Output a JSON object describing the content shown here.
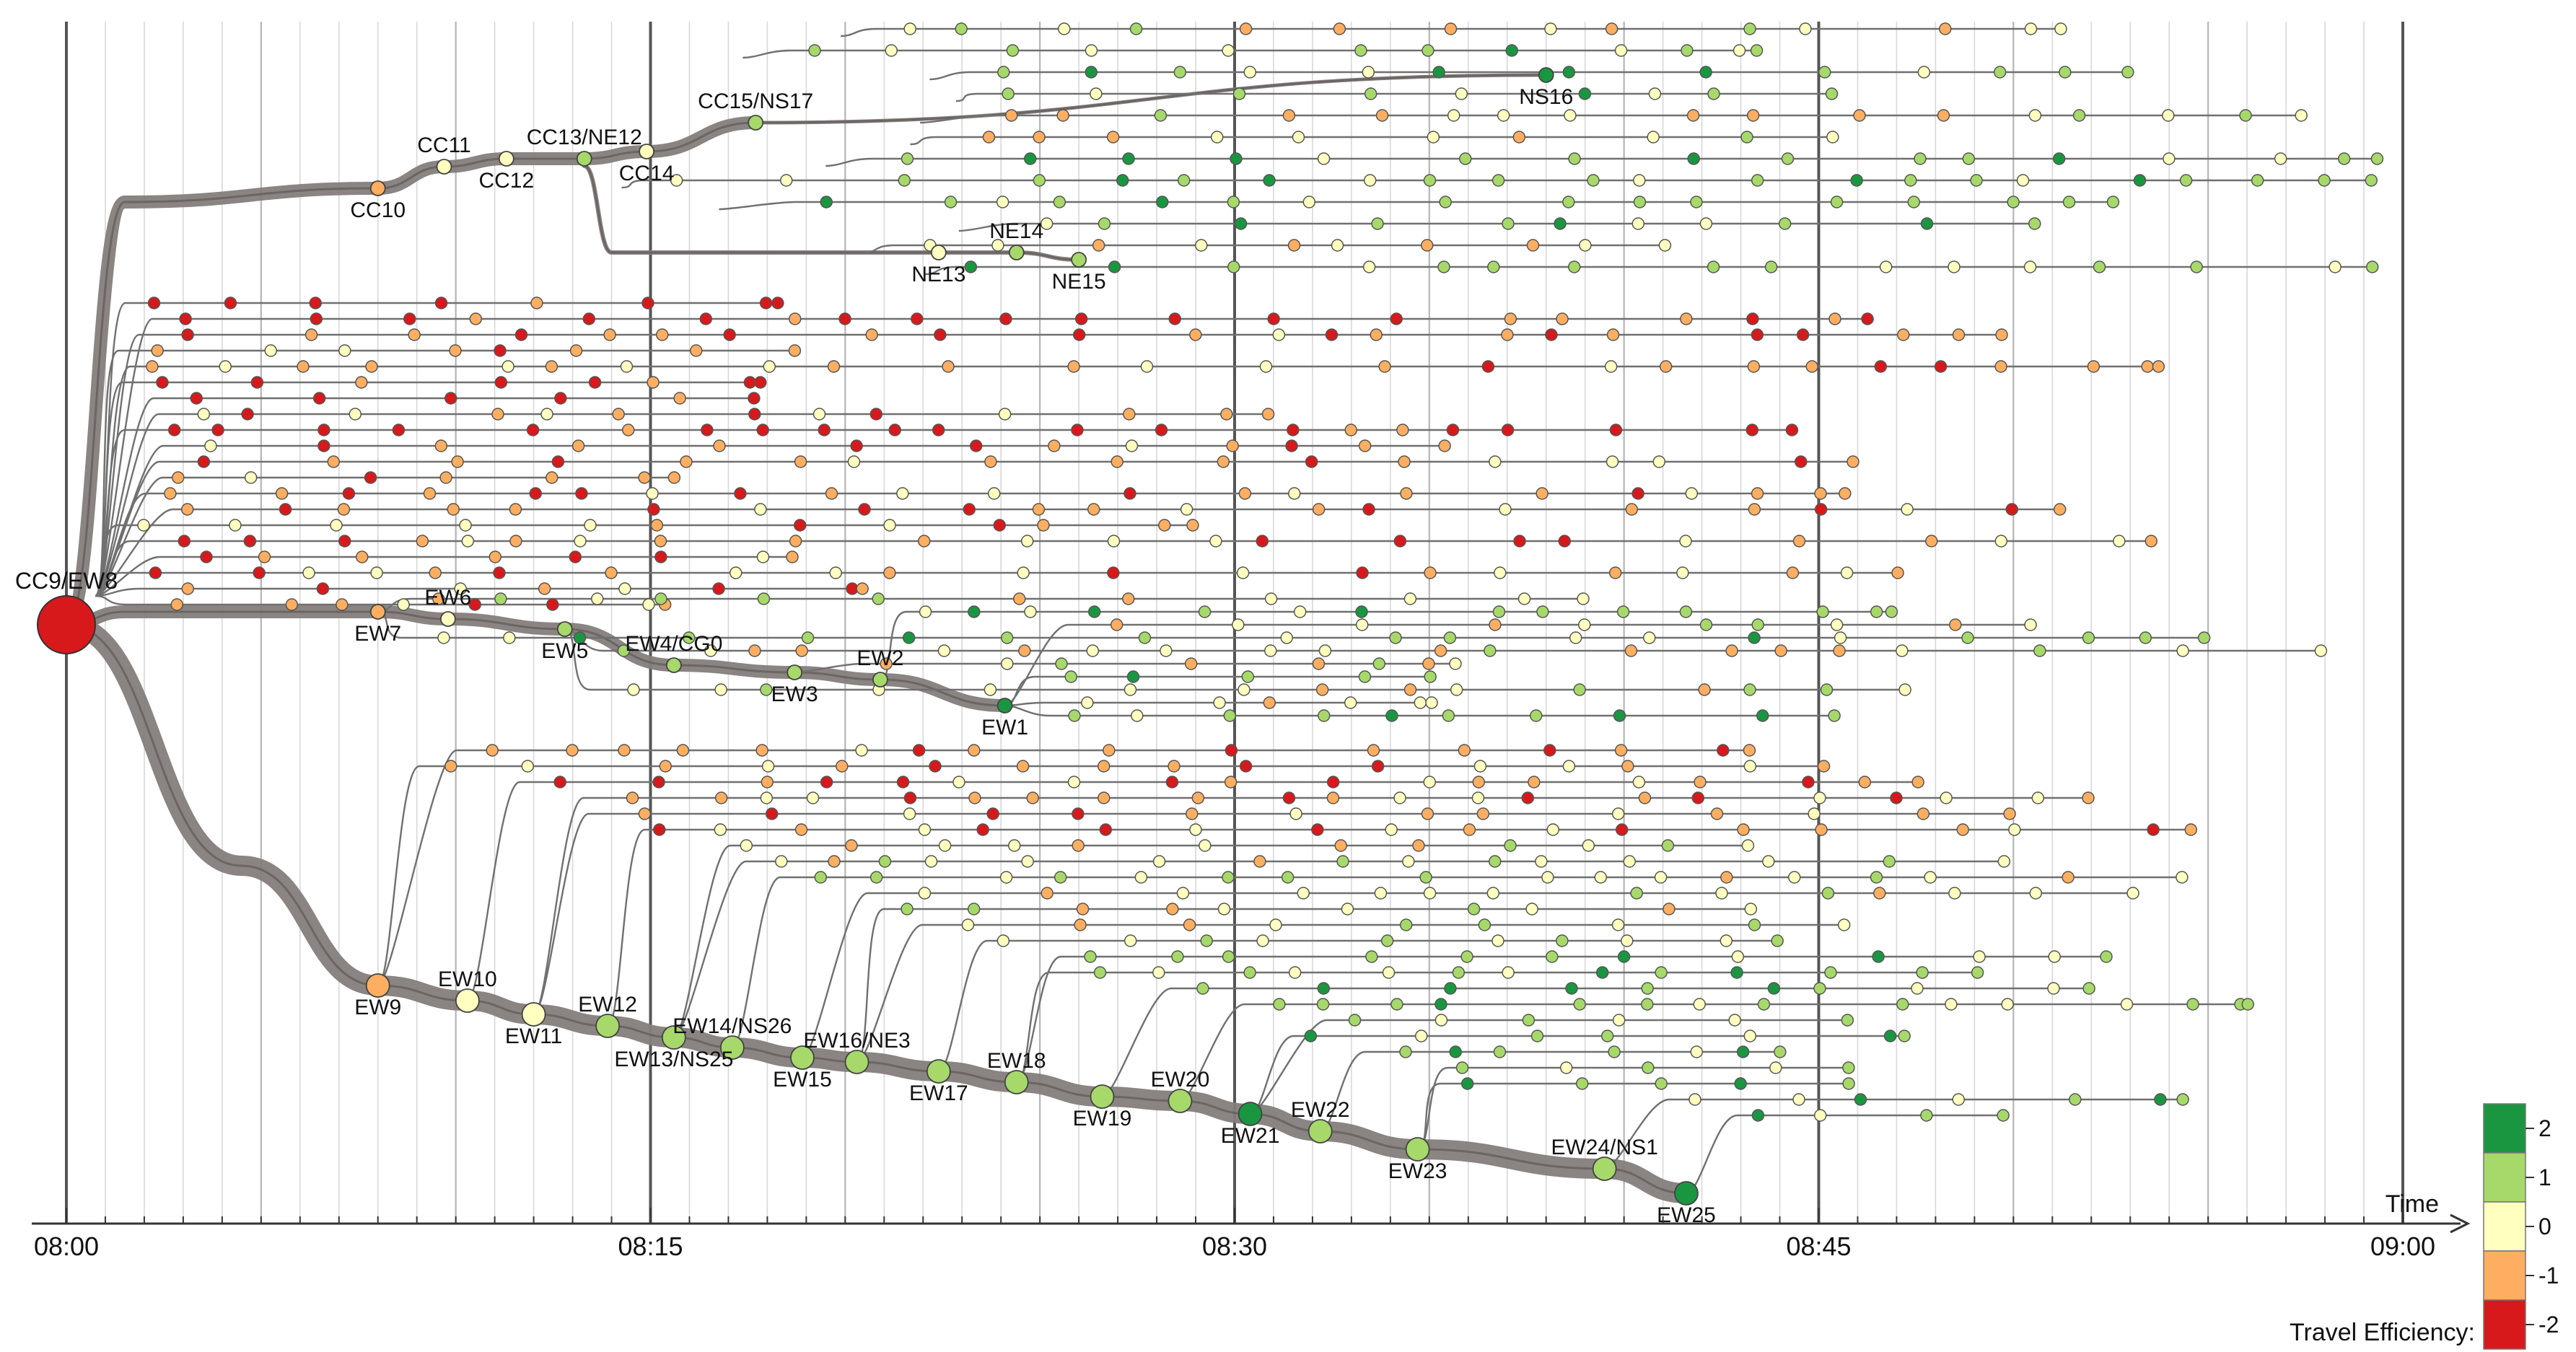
{
  "chart_data": {
    "type": "tree-timeline",
    "x_axis": {
      "label": "Time",
      "ticks": [
        "08:00",
        "08:15",
        "08:30",
        "08:45",
        "09:00"
      ],
      "range_minutes": [
        0,
        60
      ]
    },
    "legend": {
      "title": "Travel Efficiency:",
      "placement": "bottom-right",
      "levels": [
        {
          "value": "2",
          "color": "#1a9641"
        },
        {
          "value": "1",
          "color": "#a6d96a"
        },
        {
          "value": "0",
          "color": "#ffffbf"
        },
        {
          "value": "-1",
          "color": "#fdae61"
        },
        {
          "value": "-2",
          "color": "#d7191c"
        }
      ]
    },
    "root": {
      "name": "CC9/EW8",
      "t": 0,
      "level": -2
    },
    "lines": [
      {
        "id": "circle",
        "stations": [
          {
            "name": "CC10",
            "t": 8.0,
            "level": -1
          },
          {
            "name": "CC11",
            "t": 9.7,
            "level": 0
          },
          {
            "name": "CC12",
            "t": 11.3,
            "level": 0
          },
          {
            "name": "CC13/NE12",
            "t": 13.3,
            "level": 1
          },
          {
            "name": "CC14",
            "t": 14.9,
            "level": 0
          },
          {
            "name": "CC15/NS17",
            "t": 17.7,
            "level": 1
          },
          {
            "name": "NS16",
            "t": 38.0,
            "level": 2
          }
        ]
      },
      {
        "id": "north-east",
        "stations": [
          {
            "name": "NE13",
            "t": 22.4,
            "level": 0
          },
          {
            "name": "NE14",
            "t": 24.4,
            "level": 1
          },
          {
            "name": "NE15",
            "t": 26.0,
            "level": 1
          }
        ]
      },
      {
        "id": "east-west-west",
        "stations": [
          {
            "name": "EW7",
            "t": 8.0,
            "level": -1
          },
          {
            "name": "EW6",
            "t": 9.8,
            "level": 0
          },
          {
            "name": "EW5",
            "t": 12.8,
            "level": 1
          },
          {
            "name": "EW4/CG0",
            "t": 15.6,
            "level": 1
          },
          {
            "name": "EW3",
            "t": 18.7,
            "level": 1
          },
          {
            "name": "EW2",
            "t": 20.9,
            "level": 1
          },
          {
            "name": "EW1",
            "t": 24.1,
            "level": 2
          }
        ]
      },
      {
        "id": "east-west-east",
        "stations": [
          {
            "name": "EW9",
            "t": 8.0,
            "level": -1
          },
          {
            "name": "EW10",
            "t": 10.3,
            "level": 0
          },
          {
            "name": "EW11",
            "t": 12.0,
            "level": 0
          },
          {
            "name": "EW12",
            "t": 13.9,
            "level": 1
          },
          {
            "name": "EW13/NS25",
            "t": 15.6,
            "level": 1
          },
          {
            "name": "EW14/NS26",
            "t": 17.1,
            "level": 1
          },
          {
            "name": "EW15",
            "t": 18.9,
            "level": 1
          },
          {
            "name": "EW16/NE3",
            "t": 20.3,
            "level": 1
          },
          {
            "name": "EW17",
            "t": 22.4,
            "level": 1
          },
          {
            "name": "EW18",
            "t": 24.4,
            "level": 1
          },
          {
            "name": "EW19",
            "t": 26.6,
            "level": 1
          },
          {
            "name": "EW20",
            "t": 28.6,
            "level": 1
          },
          {
            "name": "EW21",
            "t": 30.4,
            "level": 2
          },
          {
            "name": "EW22",
            "t": 32.2,
            "level": 1
          },
          {
            "name": "EW23",
            "t": 34.7,
            "level": 1
          },
          {
            "name": "EW24/NS1",
            "t": 39.5,
            "level": 1
          },
          {
            "name": "EW25",
            "t": 41.6,
            "level": 2
          }
        ]
      }
    ]
  }
}
